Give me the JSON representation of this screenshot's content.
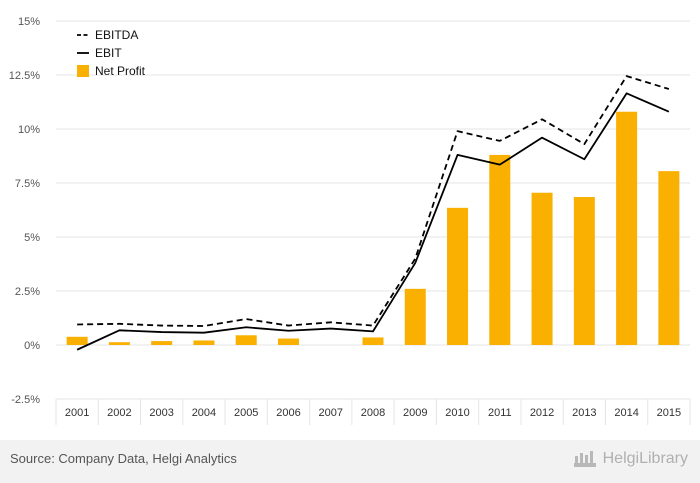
{
  "chart_data": {
    "type": "bar+line",
    "categories": [
      "2001",
      "2002",
      "2003",
      "2004",
      "2005",
      "2006",
      "2007",
      "2008",
      "2009",
      "2010",
      "2011",
      "2012",
      "2013",
      "2014",
      "2015"
    ],
    "y_tick_labels": [
      "-2.5%",
      "0%",
      "2.5%",
      "5%",
      "7.5%",
      "10%",
      "12.5%",
      "15%"
    ],
    "y_ticks": [
      -2.5,
      0,
      2.5,
      5,
      7.5,
      10,
      12.5,
      15
    ],
    "ylim": [
      -2.5,
      15
    ],
    "grid": true,
    "legend_position": "top-left",
    "series": [
      {
        "name": "EBITDA",
        "type": "line",
        "style": "dashed",
        "color": "#000000",
        "values": [
          0.95,
          0.98,
          0.9,
          0.88,
          1.2,
          0.9,
          1.05,
          0.9,
          4.0,
          9.9,
          9.45,
          10.45,
          9.3,
          12.45,
          11.85
        ]
      },
      {
        "name": "EBIT",
        "type": "line",
        "style": "solid",
        "color": "#000000",
        "values": [
          -0.22,
          0.68,
          0.6,
          0.57,
          0.82,
          0.66,
          0.76,
          0.63,
          3.8,
          8.8,
          8.35,
          9.6,
          8.6,
          11.65,
          10.8
        ]
      },
      {
        "name": "Net Profit",
        "type": "bar",
        "color": "#f9b000",
        "values": [
          0.38,
          0.13,
          0.18,
          0.21,
          0.45,
          0.3,
          0.0,
          0.35,
          2.6,
          6.35,
          8.8,
          7.05,
          6.85,
          10.8,
          8.05
        ]
      }
    ]
  },
  "footer": {
    "source": "Source: Company Data, Helgi Analytics",
    "brand": "HelgiLibrary"
  },
  "colors": {
    "bar": "#f9b000",
    "grid": "#e6e6e6",
    "axis_text": "#555555",
    "footer_bg": "#f2f2f2"
  }
}
